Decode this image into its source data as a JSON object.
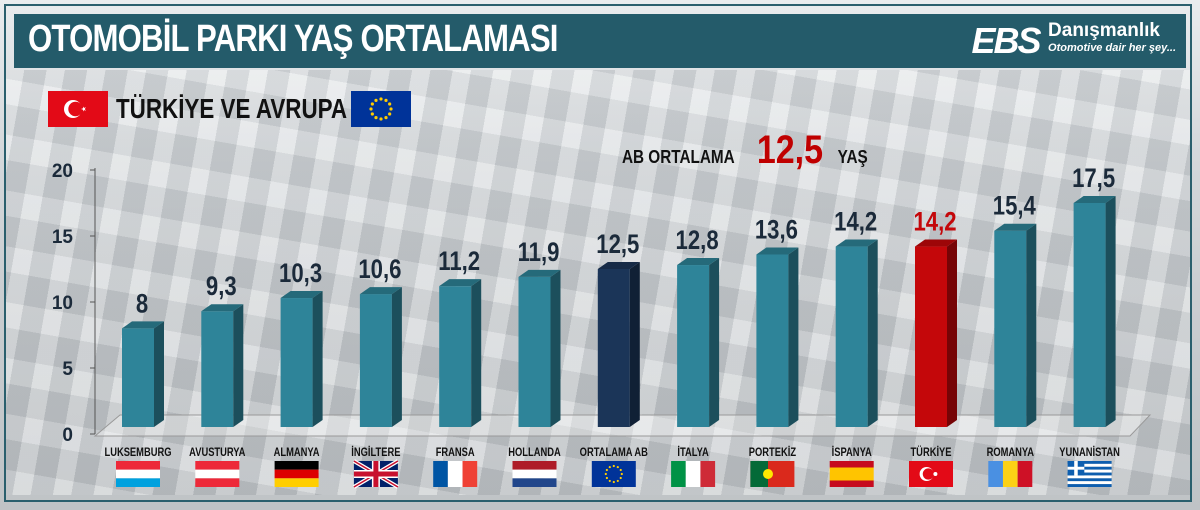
{
  "header": {
    "title": "OTOMOBİL PARKI YAŞ ORTALAMASI",
    "logo_text": "EBS",
    "logo_name": "Danışmanlık",
    "logo_tagline": "Otomotive dair her şey..."
  },
  "subtitle": "TÜRKİYE VE AVRUPA",
  "subtitle_flags": [
    "turkey-flag-icon",
    "eu-flag-icon"
  ],
  "annotation": {
    "prefix": "AB ORTALAMA",
    "value": "12,5",
    "suffix": "YAŞ"
  },
  "colors": {
    "bar": "#2e8499",
    "average": "#1b3558",
    "highlight": "#c4070a",
    "value_label": "#1b2a3a"
  },
  "chart_data": {
    "type": "bar",
    "title": "OTOMOBİL PARKI YAŞ ORTALAMASI",
    "xlabel": "",
    "ylabel": "",
    "ylim": [
      0,
      20
    ],
    "yticks": [
      0,
      5,
      10,
      15,
      20
    ],
    "grid": false,
    "categories": [
      "LUKSEMBURG",
      "AVUSTURYA",
      "ALMANYA",
      "İNGİLTERE",
      "FRANSA",
      "HOLLANDA",
      "ORTALAMA AB",
      "İTALYA",
      "PORTEKİZ",
      "İSPANYA",
      "TÜRKİYE",
      "ROMANYA",
      "YUNANİSTAN"
    ],
    "values": [
      8,
      9.3,
      10.3,
      10.6,
      11.2,
      11.9,
      12.5,
      12.8,
      13.6,
      14.2,
      14.2,
      15.4,
      17.5
    ],
    "value_labels": [
      "8",
      "9,3",
      "10,3",
      "10,6",
      "11,2",
      "11,9",
      "12,5",
      "12,8",
      "13,6",
      "14,2",
      "14,2",
      "15,4",
      "17,5"
    ],
    "bar_styles": [
      "normal",
      "normal",
      "normal",
      "normal",
      "normal",
      "normal",
      "average",
      "normal",
      "normal",
      "normal",
      "highlight",
      "normal",
      "normal"
    ],
    "flags": [
      "luxembourg-flag-icon",
      "austria-flag-icon",
      "germany-flag-icon",
      "uk-flag-icon",
      "france-flag-icon",
      "netherlands-flag-icon",
      "eu-flag-icon",
      "italy-flag-icon",
      "portugal-flag-icon",
      "spain-flag-icon",
      "turkey-flag-icon",
      "romania-flag-icon",
      "greece-flag-icon"
    ]
  }
}
